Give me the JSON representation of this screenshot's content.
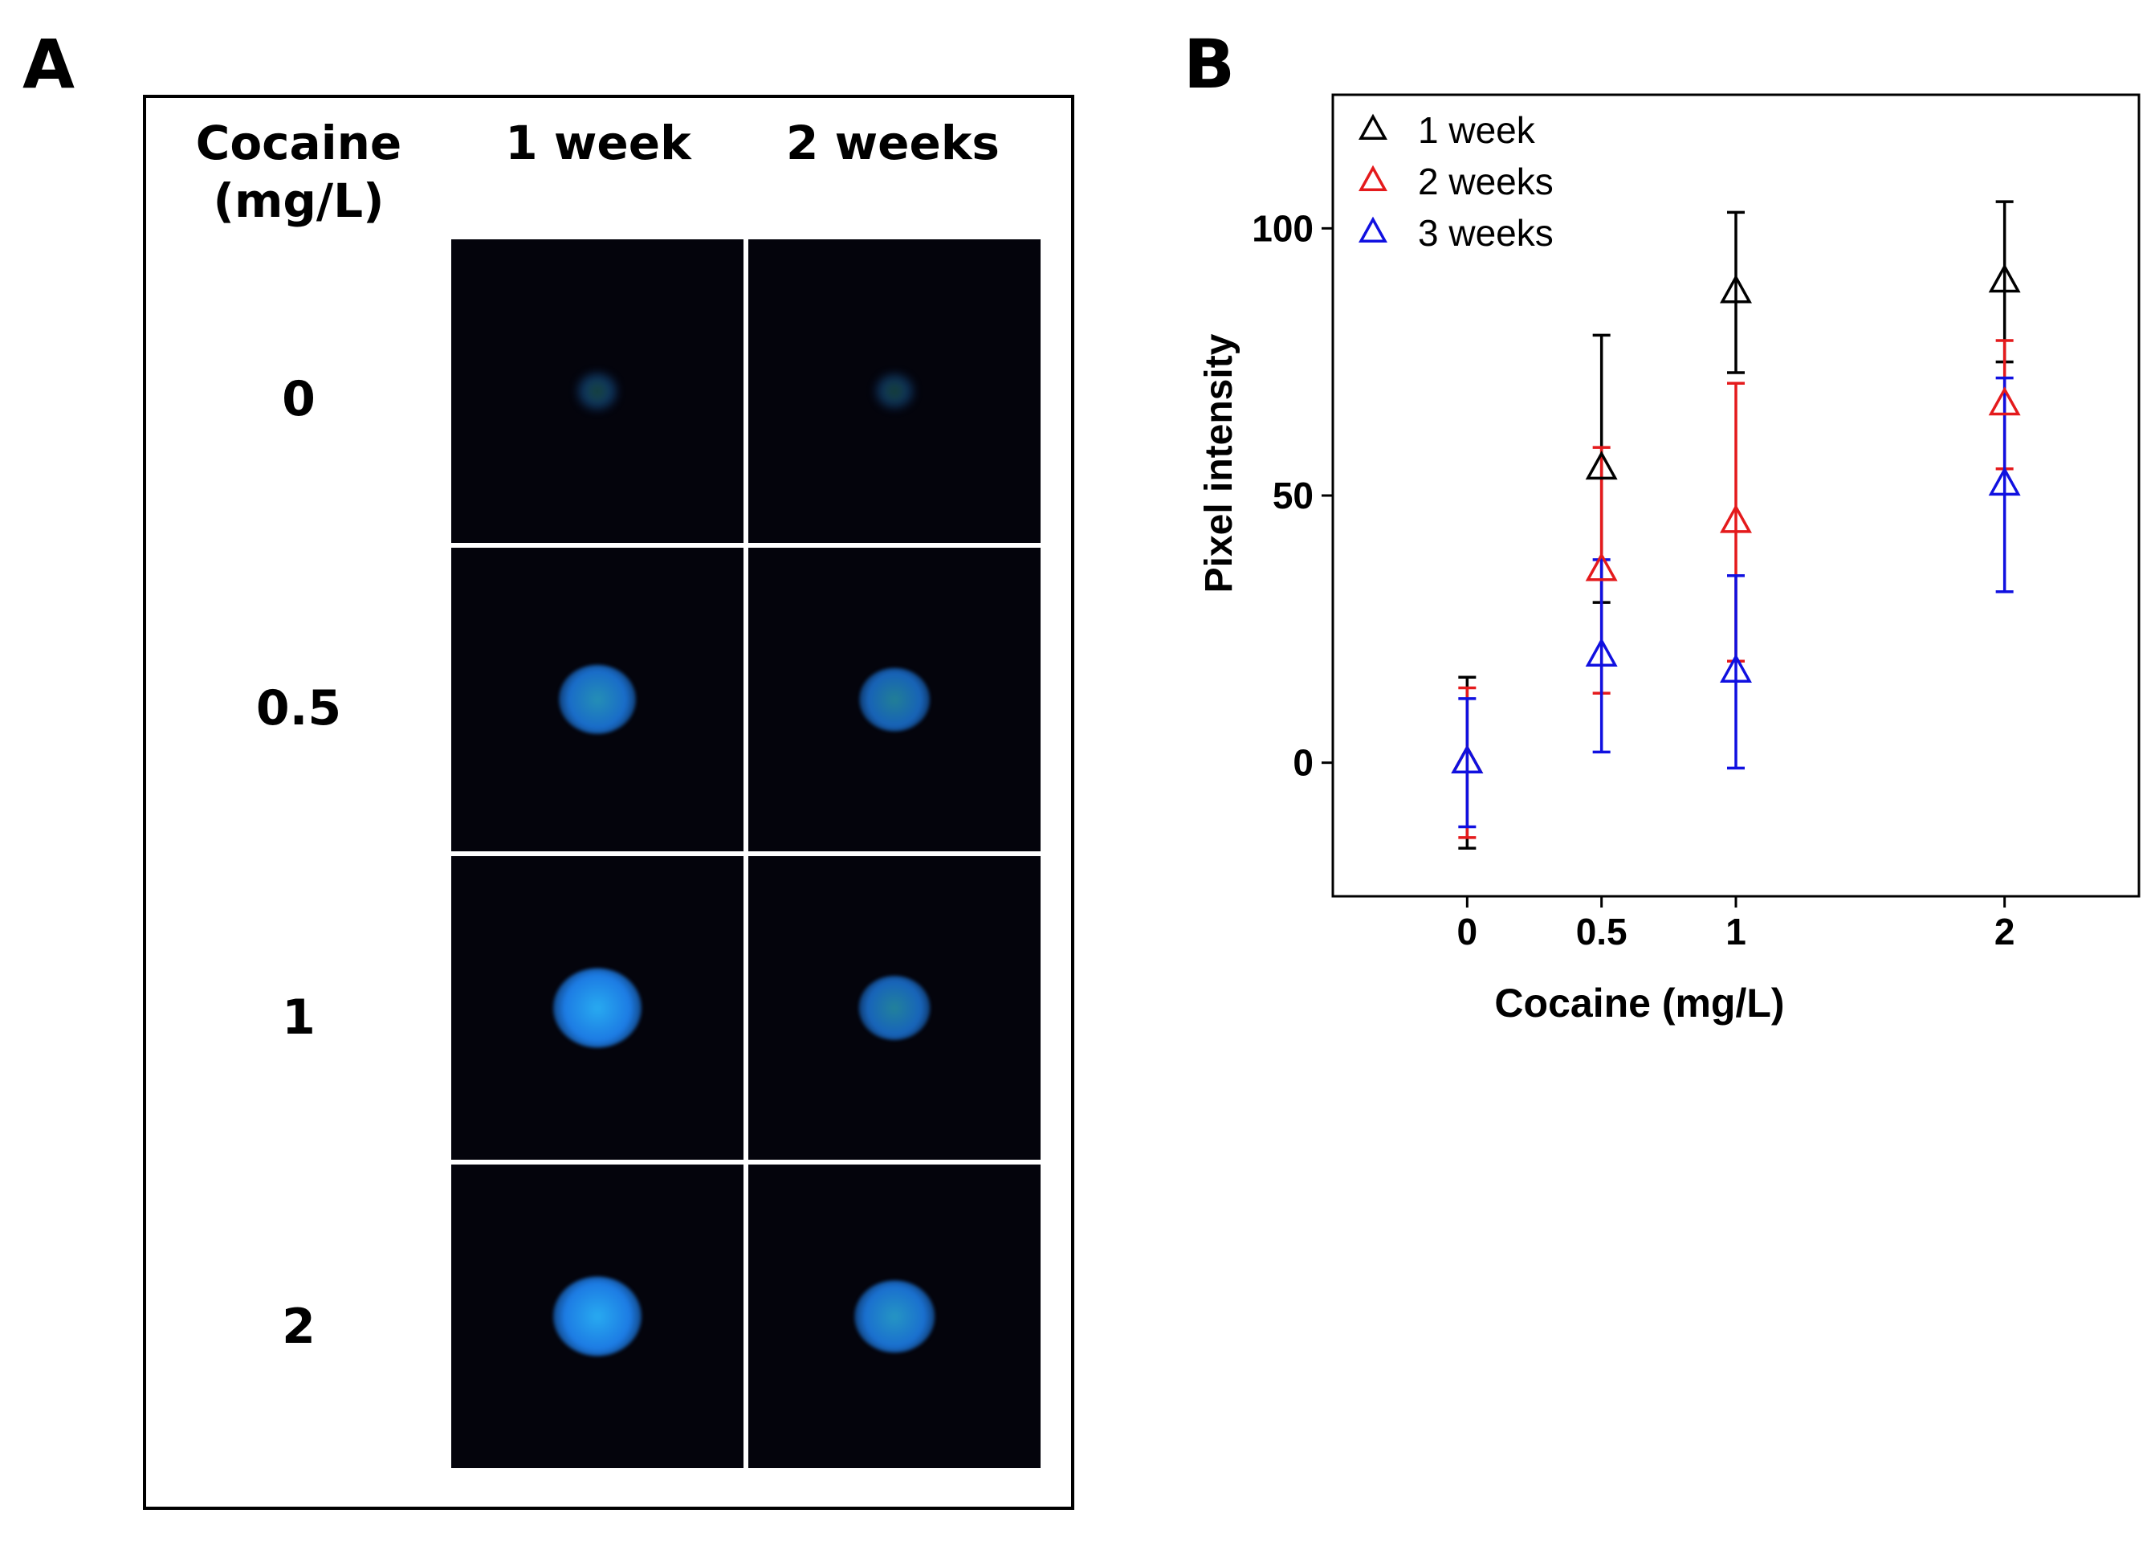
{
  "panel_a": {
    "letter": "A",
    "header_cocaine_line1": "Cocaine",
    "header_cocaine_line2": "(mg/L)",
    "columns": [
      "1 week",
      "2 weeks"
    ],
    "rows": [
      {
        "label": "0",
        "cells": [
          {
            "intensity": 0.12
          },
          {
            "intensity": 0.08
          }
        ]
      },
      {
        "label": "0.5",
        "cells": [
          {
            "intensity": 0.8
          },
          {
            "intensity": 0.68
          }
        ]
      },
      {
        "label": "1",
        "cells": [
          {
            "intensity": 1.0
          },
          {
            "intensity": 0.7
          }
        ]
      },
      {
        "label": "2",
        "cells": [
          {
            "intensity": 1.0
          },
          {
            "intensity": 0.85
          }
        ]
      }
    ],
    "spot_color": "#1e88f0",
    "background_color": "#04040c"
  },
  "chart_data": {
    "panel_letter": "B",
    "type": "scatter",
    "xlabel": "Cocaine (mg/L)",
    "ylabel": "Pixel intensity",
    "xlim": [
      -0.5,
      2.5
    ],
    "ylim": [
      -25,
      125
    ],
    "xticks": [
      0,
      0.5,
      1,
      2
    ],
    "xtick_labels": [
      "0",
      "0.5",
      "1",
      "2"
    ],
    "yticks": [
      0,
      50,
      100
    ],
    "ytick_labels": [
      "0",
      "50",
      "100"
    ],
    "legend_position": "top-left",
    "marker": "open-triangle",
    "series": [
      {
        "name": "1 week",
        "color": "#000000",
        "x": [
          0,
          0.5,
          1,
          2
        ],
        "y": [
          0,
          55,
          88,
          90
        ],
        "err": [
          16,
          25,
          15,
          15
        ]
      },
      {
        "name": "2 weeks",
        "color": "#e41a1c",
        "x": [
          0,
          0.5,
          1,
          2
        ],
        "y": [
          0,
          36,
          45,
          67
        ],
        "err": [
          14,
          23,
          26,
          12
        ]
      },
      {
        "name": "3 weeks",
        "color": "#1010e0",
        "x": [
          0,
          0.5,
          1,
          2
        ],
        "y": [
          0,
          20,
          17,
          52
        ],
        "err": [
          12,
          18,
          18,
          20
        ]
      }
    ]
  }
}
